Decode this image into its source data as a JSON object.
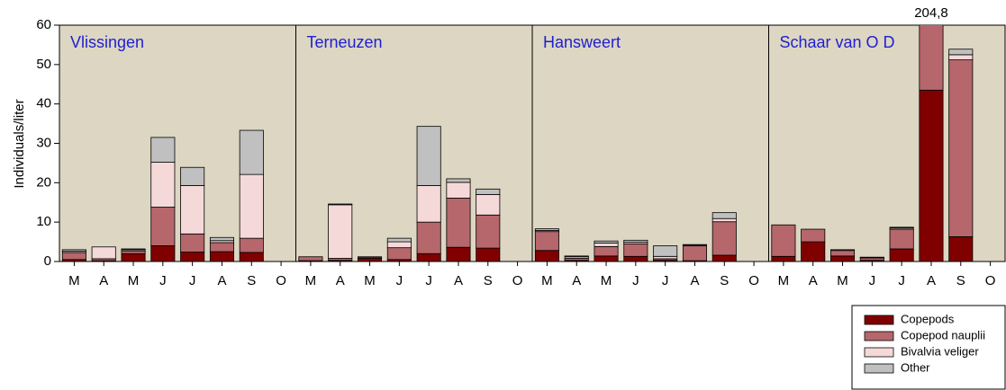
{
  "chart_data": {
    "type": "bar",
    "stacked": true,
    "ylabel": "Individuals/liter",
    "ylim": [
      0,
      60
    ],
    "yticks": [
      0,
      10,
      20,
      30,
      40,
      50,
      60
    ],
    "legend": "bottom right",
    "annotations": [
      {
        "text": "204,8",
        "panel": 3,
        "category": 5
      }
    ],
    "panels": [
      {
        "title": "Vlissingen",
        "categories": [
          "M",
          "A",
          "M",
          "J",
          "J",
          "A",
          "S",
          "O"
        ]
      },
      {
        "title": "Terneuzen",
        "categories": [
          "M",
          "A",
          "M",
          "J",
          "J",
          "A",
          "S",
          "O"
        ]
      },
      {
        "title": "Hansweert",
        "categories": [
          "M",
          "A",
          "M",
          "J",
          "J",
          "A",
          "S",
          "O"
        ]
      },
      {
        "title": "Schaar van O D",
        "categories": [
          "M",
          "A",
          "M",
          "J",
          "J",
          "A",
          "S",
          "O"
        ]
      }
    ],
    "series": [
      {
        "name": "Copepods",
        "color": "#800000",
        "values": [
          [
            0.5,
            0.2,
            2.0,
            4.0,
            2.4,
            2.5,
            2.3,
            0
          ],
          [
            0.2,
            0.3,
            0.8,
            0.5,
            2.0,
            3.6,
            3.4,
            0
          ],
          [
            2.8,
            0.3,
            1.4,
            1.3,
            0.3,
            0.2,
            1.6,
            0
          ],
          [
            1.3,
            5.0,
            1.4,
            0.3,
            3.2,
            43.5,
            6.3,
            0
          ]
        ]
      },
      {
        "name": "Copepod nauplii",
        "color": "#b5676b",
        "values": [
          [
            1.8,
            0.5,
            0.7,
            9.8,
            4.6,
            2.3,
            3.6,
            0
          ],
          [
            1.0,
            0.5,
            0.3,
            3.0,
            8.0,
            12.5,
            8.4,
            0
          ],
          [
            4.8,
            0.5,
            2.4,
            3.2,
            0.4,
            3.8,
            8.5,
            0
          ],
          [
            8.0,
            3.2,
            1.4,
            0.6,
            5.0,
            161.3,
            44.9,
            0
          ]
        ]
      },
      {
        "name": "Bivalvia veliger",
        "color": "#f5d9d9",
        "values": [
          [
            0.3,
            3.0,
            0.3,
            11.4,
            12.3,
            0.5,
            16.2,
            0
          ],
          [
            0,
            13.6,
            0,
            1.5,
            9.3,
            4.0,
            5.2,
            0
          ],
          [
            0.3,
            0.4,
            0.9,
            0.4,
            0.6,
            0.1,
            0.8,
            0
          ],
          [
            0,
            0,
            0.2,
            0.1,
            0.3,
            0,
            1.3,
            0
          ]
        ]
      },
      {
        "name": "Other",
        "color": "#c0c0c0",
        "values": [
          [
            0.4,
            0,
            0.2,
            6.3,
            4.6,
            0.8,
            11.2,
            0
          ],
          [
            0,
            0.2,
            0.1,
            0.9,
            15.0,
            0.9,
            1.4,
            0
          ],
          [
            0.4,
            0.2,
            0.5,
            0.5,
            2.7,
            0.2,
            1.5,
            0
          ],
          [
            0,
            0,
            0,
            0.1,
            0.2,
            0,
            1.4,
            0
          ]
        ]
      }
    ]
  }
}
